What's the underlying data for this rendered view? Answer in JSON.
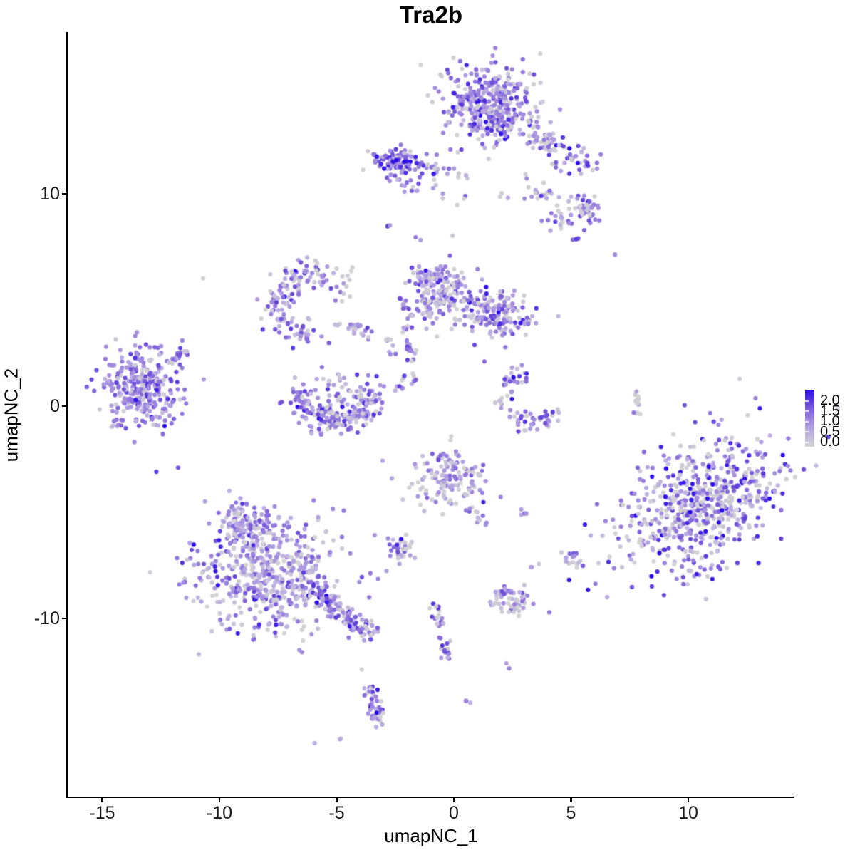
{
  "chart_data": {
    "type": "scatter",
    "title": "Tra2b",
    "xlabel": "umapNC_1",
    "ylabel": "umapNC_2",
    "xlim": [
      -16.5,
      14.5
    ],
    "ylim": [
      -18.4,
      17.6
    ],
    "grid": false,
    "x_ticks": [
      "-15",
      "-10",
      "-5",
      "0",
      "5",
      "10"
    ],
    "x_tick_values": [
      -15,
      -10,
      -5,
      0,
      5,
      10
    ],
    "y_ticks": [
      "10",
      "0",
      "-10"
    ],
    "y_tick_values": [
      10,
      0,
      -10
    ],
    "legend": {
      "position": "right",
      "labels": [
        "2.0",
        "1.5",
        "1.0",
        "0.5",
        "0.0"
      ],
      "label_values": [
        2.0,
        1.5,
        1.0,
        0.5,
        0.0
      ]
    },
    "point_radius": 3.1,
    "color_low": "#D3D3D3",
    "color_high": "#2C0DEB",
    "gradient_stops": [
      [
        0,
        "#D3D3D3"
      ],
      [
        0.25,
        "#BDB0E2"
      ],
      [
        0.5,
        "#9B83DE"
      ],
      [
        0.75,
        "#6A4AD8"
      ],
      [
        1,
        "#2C0DEB"
      ]
    ],
    "clusters": [
      {
        "name": "top-main-core",
        "type": "gauss",
        "cx": 1.55,
        "cy": 14.16,
        "sx": 0.85,
        "sy": 0.85,
        "n": 330,
        "expr": {
          "mean": 1.05,
          "sd": 0.45,
          "gray": 0.1
        }
      },
      {
        "name": "top-main-halo",
        "type": "gauss",
        "cx": 1.55,
        "cy": 14.1,
        "sx": 1.35,
        "sy": 1.25,
        "n": 55,
        "expr": {
          "mean": 0.85,
          "sd": 0.5,
          "gray": 0.3
        }
      },
      {
        "name": "top-tail",
        "type": "line",
        "x1": 3.2,
        "y1": 12.95,
        "x2": 5.9,
        "y2": 11.15,
        "jitter": 0.42,
        "n": 85,
        "expr": {
          "mean": 0.9,
          "sd": 0.5,
          "gray": 0.22
        }
      },
      {
        "name": "top-tail-lower",
        "type": "line",
        "x1": 2.9,
        "y1": 10.5,
        "x2": 4.9,
        "y2": 9.6,
        "jitter": 0.3,
        "n": 18,
        "expr": {
          "mean": 0.8,
          "sd": 0.5,
          "gray": 0.3
        }
      },
      {
        "name": "right-clump-a",
        "type": "gauss",
        "cx": 5.65,
        "cy": 9.33,
        "sx": 0.32,
        "sy": 0.36,
        "n": 42,
        "expr": {
          "mean": 1.0,
          "sd": 0.5,
          "gray": 0.15
        }
      },
      {
        "name": "right-clump-b",
        "type": "gauss",
        "cx": 4.56,
        "cy": 8.82,
        "sx": 0.3,
        "sy": 0.26,
        "n": 20,
        "expr": {
          "mean": 0.9,
          "sd": 0.45,
          "gray": 0.2
        }
      },
      {
        "name": "right-dot-c",
        "type": "gauss",
        "cx": 5.2,
        "cy": 7.85,
        "sx": 0.1,
        "sy": 0.08,
        "n": 3,
        "expr": {
          "mean": 1.1,
          "sd": 0.3,
          "gray": 0
        }
      },
      {
        "name": "right-single",
        "type": "gauss",
        "cx": 6.87,
        "cy": 7.18,
        "sx": 0.05,
        "sy": 0.05,
        "n": 1,
        "expr": {
          "mean": 0.9,
          "sd": 0,
          "gray": 0
        }
      },
      {
        "name": "dense-small",
        "type": "gauss",
        "cx": -2.4,
        "cy": 11.5,
        "sx": 0.55,
        "sy": 0.34,
        "n": 95,
        "expr": {
          "mean": 1.25,
          "sd": 0.5,
          "gray": 0.08
        }
      },
      {
        "name": "dense-small-dark",
        "type": "gauss",
        "cx": -2.55,
        "cy": 11.6,
        "sx": 0.08,
        "sy": 0.08,
        "n": 2,
        "expr": {
          "mean": 1.9,
          "sd": 0.1,
          "gray": 0
        }
      },
      {
        "name": "dense-trail",
        "type": "line",
        "x1": -1.45,
        "y1": 11.35,
        "x2": 0.55,
        "y2": 10.85,
        "jitter": 0.2,
        "n": 20,
        "expr": {
          "mean": 1.0,
          "sd": 0.45,
          "gray": 0.15
        }
      },
      {
        "name": "dense-below",
        "type": "gauss",
        "cx": -1.85,
        "cy": 10.45,
        "sx": 0.5,
        "sy": 0.3,
        "n": 12,
        "expr": {
          "mean": 0.8,
          "sd": 0.4,
          "gray": 0.3
        }
      },
      {
        "name": "mid-scatter",
        "type": "gauss",
        "cx": 0.1,
        "cy": 9.9,
        "sx": 0.5,
        "sy": 0.4,
        "n": 8,
        "expr": {
          "mean": 0.8,
          "sd": 0.45,
          "gray": 0.3
        }
      },
      {
        "name": "pair-a",
        "type": "gauss",
        "cx": 2.28,
        "cy": 9.95,
        "sx": 0.15,
        "sy": 0.1,
        "n": 3,
        "expr": {
          "mean": 0.9,
          "sd": 0.3,
          "gray": 0.2
        }
      },
      {
        "name": "pair-b",
        "type": "gauss",
        "cx": 3.28,
        "cy": 9.85,
        "sx": 0.1,
        "sy": 0.08,
        "n": 2,
        "expr": {
          "mean": 0.8,
          "sd": 0.3,
          "gray": 0
        }
      },
      {
        "name": "dot-283",
        "type": "gauss",
        "cx": -2.83,
        "cy": 8.5,
        "sx": 0.1,
        "sy": 0.07,
        "n": 3,
        "expr": {
          "mean": 1.2,
          "sd": 0.3,
          "gray": 0
        }
      },
      {
        "name": "dot-137",
        "type": "gauss",
        "cx": -1.37,
        "cy": 7.79,
        "sx": 0.05,
        "sy": 0.05,
        "n": 1,
        "expr": {
          "mean": 0.7,
          "sd": 0,
          "gray": 0
        }
      },
      {
        "name": "left-crescent",
        "type": "arc",
        "cx": -6.1,
        "cy": 4.75,
        "r": 1.45,
        "a1": 55,
        "a2": 285,
        "jitter": 0.33,
        "n": 135,
        "expr": {
          "mean": 0.95,
          "sd": 0.45,
          "gray": 0.16
        }
      },
      {
        "name": "crescent-strand",
        "type": "line",
        "x1": -5.0,
        "y1": 3.9,
        "x2": -3.6,
        "y2": 3.4,
        "jitter": 0.22,
        "n": 22,
        "expr": {
          "mean": 0.9,
          "sd": 0.4,
          "gray": 0.2
        }
      },
      {
        "name": "crescent-descender",
        "type": "line",
        "x1": -4.45,
        "y1": 6.6,
        "x2": -4.75,
        "y2": 4.9,
        "jitter": 0.13,
        "n": 11,
        "expr": {
          "mean": 0.8,
          "sd": 0.4,
          "gray": 0.3
        }
      },
      {
        "name": "crescent-topdots",
        "type": "gauss",
        "cx": -6.3,
        "cy": 6.6,
        "sx": 0.35,
        "sy": 0.3,
        "n": 5,
        "expr": {
          "mean": 0.6,
          "sd": 0.4,
          "gray": 0.4
        }
      },
      {
        "name": "center-blob-main",
        "type": "gauss",
        "cx": -0.45,
        "cy": 5.2,
        "sx": 0.72,
        "sy": 0.8,
        "n": 150,
        "expr": {
          "mean": 0.85,
          "sd": 0.5,
          "gray": 0.22
        }
      },
      {
        "name": "center-blob-right",
        "type": "gauss",
        "cx": 1.85,
        "cy": 4.4,
        "sx": 0.75,
        "sy": 0.55,
        "n": 140,
        "expr": {
          "mean": 1.0,
          "sd": 0.5,
          "gray": 0.15
        }
      },
      {
        "name": "center-blob-knob",
        "type": "gauss",
        "cx": -1.1,
        "cy": 6.0,
        "sx": 0.38,
        "sy": 0.3,
        "n": 40,
        "expr": {
          "mean": 0.9,
          "sd": 0.45,
          "gray": 0.15
        }
      },
      {
        "name": "center-blob-tip",
        "type": "gauss",
        "cx": 3.0,
        "cy": 3.9,
        "sx": 0.2,
        "sy": 0.15,
        "n": 7,
        "expr": {
          "mean": 0.9,
          "sd": 0.4,
          "gray": 0.2
        }
      },
      {
        "name": "v-strand",
        "type": "line",
        "x1": -2.15,
        "y1": 4.9,
        "x2": -1.6,
        "y2": 0.9,
        "jitter": 0.17,
        "n": 30,
        "expr": {
          "mean": 0.9,
          "sd": 0.45,
          "gray": 0.25
        }
      },
      {
        "name": "v-strand-dense",
        "type": "gauss",
        "cx": -1.95,
        "cy": 2.6,
        "sx": 0.12,
        "sy": 0.1,
        "n": 6,
        "expr": {
          "mean": 1.3,
          "sd": 0.3,
          "gray": 0
        }
      },
      {
        "name": "v-strand2",
        "type": "line",
        "x1": -2.8,
        "y1": 3.35,
        "x2": -2.55,
        "y2": 2.0,
        "jitter": 0.1,
        "n": 8,
        "expr": {
          "mean": 0.7,
          "sd": 0.4,
          "gray": 0.3
        }
      },
      {
        "name": "v-strand3",
        "type": "gauss",
        "cx": -2.3,
        "cy": 0.9,
        "sx": 0.15,
        "sy": 0.3,
        "n": 8,
        "expr": {
          "mean": 0.9,
          "sd": 0.4,
          "gray": 0.2
        }
      },
      {
        "name": "left-big",
        "type": "gauss",
        "cx": -13.3,
        "cy": 0.9,
        "sx": 0.85,
        "sy": 1.0,
        "n": 300,
        "expr": {
          "mean": 1.0,
          "sd": 0.45,
          "gray": 0.1
        }
      },
      {
        "name": "left-big-tail",
        "type": "line",
        "x1": -12.0,
        "y1": 1.95,
        "x2": -11.2,
        "y2": 2.95,
        "jitter": 0.17,
        "n": 18,
        "expr": {
          "mean": 1.1,
          "sd": 0.4,
          "gray": 0.1
        }
      },
      {
        "name": "center-u-arc",
        "type": "arc",
        "cx": -5.02,
        "cy": 0.74,
        "r": 1.5,
        "a1": 180,
        "a2": 365,
        "jitter": 0.33,
        "n": 205,
        "expr": {
          "mean": 1.05,
          "sd": 0.5,
          "gray": 0.12
        }
      },
      {
        "name": "center-u-inner",
        "type": "gauss",
        "cx": -5.0,
        "cy": 0.9,
        "sx": 0.75,
        "sy": 0.5,
        "n": 28,
        "expr": {
          "mean": 0.7,
          "sd": 0.45,
          "gray": 0.35
        }
      },
      {
        "name": "c-right",
        "type": "arc",
        "cx": 3.28,
        "cy": 0.4,
        "r": 1.2,
        "a1": 95,
        "a2": 330,
        "jitter": 0.24,
        "n": 72,
        "expr": {
          "mean": 0.95,
          "sd": 0.45,
          "gray": 0.2
        }
      },
      {
        "name": "tiny-strand-right",
        "type": "line",
        "x1": 7.78,
        "y1": 0.85,
        "x2": 7.9,
        "y2": -0.7,
        "jitter": 0.09,
        "n": 13,
        "expr": {
          "mean": 0.6,
          "sd": 0.4,
          "gray": 0.4
        }
      },
      {
        "name": "big-right",
        "type": "gauss",
        "cx": 10.58,
        "cy": -4.65,
        "sx": 2.0,
        "sy": 1.3,
        "rot": 40,
        "n": 620,
        "expr": {
          "mean": 0.95,
          "sd": 0.55,
          "gray": 0.22
        }
      },
      {
        "name": "center-bottom",
        "type": "gauss",
        "cx": -0.3,
        "cy": -3.45,
        "sx": 0.8,
        "sy": 0.7,
        "n": 130,
        "expr": {
          "mean": 0.7,
          "sd": 0.45,
          "gray": 0.3
        }
      },
      {
        "name": "center-bottom-tail",
        "type": "line",
        "x1": 0.65,
        "y1": -4.7,
        "x2": 1.3,
        "y2": -5.6,
        "jitter": 0.13,
        "n": 12,
        "expr": {
          "mean": 0.8,
          "sd": 0.4,
          "gray": 0.25
        }
      },
      {
        "name": "center-bottom-single",
        "type": "gauss",
        "cx": -1.25,
        "cy": -4.97,
        "sx": 0.05,
        "sy": 0.05,
        "n": 1,
        "expr": {
          "mean": 0.4,
          "sd": 0,
          "gray": 0
        }
      },
      {
        "name": "pair-292",
        "type": "gauss",
        "cx": 2.92,
        "cy": -5.05,
        "sx": 0.13,
        "sy": 0.1,
        "n": 4,
        "expr": {
          "mean": 1.0,
          "sd": 0.3,
          "gray": 0.1
        }
      },
      {
        "name": "clump-231",
        "type": "gauss",
        "cx": -2.3,
        "cy": -6.7,
        "sx": 0.33,
        "sy": 0.4,
        "n": 40,
        "expr": {
          "mean": 0.9,
          "sd": 0.5,
          "gray": 0.25
        }
      },
      {
        "name": "clump-505",
        "type": "gauss",
        "cx": 5.05,
        "cy": -7.25,
        "sx": 0.2,
        "sy": 0.17,
        "n": 12,
        "expr": {
          "mean": 1.0,
          "sd": 0.5,
          "gray": 0.15
        }
      },
      {
        "name": "pair-340",
        "type": "gauss",
        "cx": 3.4,
        "cy": -7.5,
        "sx": 0.1,
        "sy": 0.08,
        "n": 3,
        "expr": {
          "mean": 0.6,
          "sd": 0.3,
          "gray": 0.3
        }
      },
      {
        "name": "bottomleft-main",
        "type": "gauss",
        "cx": -8.05,
        "cy": -7.75,
        "sx": 1.55,
        "sy": 1.45,
        "n": 520,
        "expr": {
          "mean": 0.8,
          "sd": 0.45,
          "gray": 0.18
        }
      },
      {
        "name": "bottomleft-knob",
        "type": "gauss",
        "cx": -8.75,
        "cy": -5.5,
        "sx": 0.6,
        "sy": 0.5,
        "n": 85,
        "expr": {
          "mean": 0.85,
          "sd": 0.45,
          "gray": 0.2
        }
      },
      {
        "name": "bottomleft-tail",
        "type": "line",
        "x1": -6.3,
        "y1": -8.6,
        "x2": -3.5,
        "y2": -10.8,
        "jitter": 0.3,
        "n": 130,
        "expr": {
          "mean": 1.0,
          "sd": 0.5,
          "gray": 0.15
        }
      },
      {
        "name": "clump-243",
        "type": "gauss",
        "cx": 2.43,
        "cy": -9.25,
        "sx": 0.48,
        "sy": 0.3,
        "n": 55,
        "expr": {
          "mean": 0.75,
          "sd": 0.4,
          "gray": 0.25
        }
      },
      {
        "name": "strand-down",
        "type": "line",
        "x1": -0.85,
        "y1": -9.2,
        "x2": -0.25,
        "y2": -12.0,
        "jitter": 0.13,
        "n": 24,
        "expr": {
          "mean": 0.85,
          "sd": 0.45,
          "gray": 0.2
        }
      },
      {
        "name": "strand-down-clump",
        "type": "gauss",
        "cx": -0.35,
        "cy": -11.5,
        "sx": 0.16,
        "sy": 0.14,
        "n": 9,
        "expr": {
          "mean": 0.9,
          "sd": 0.4,
          "gray": 0.15
        }
      },
      {
        "name": "bottom-clump",
        "type": "line",
        "x1": -3.65,
        "y1": -13.2,
        "x2": -3.2,
        "y2": -15.0,
        "jitter": 0.16,
        "n": 42,
        "expr": {
          "mean": 1.0,
          "sd": 0.5,
          "gray": 0.15
        }
      },
      {
        "name": "bottom-clump-dark",
        "type": "gauss",
        "cx": -3.3,
        "cy": -14.4,
        "sx": 0.05,
        "sy": 0.05,
        "n": 1,
        "expr": {
          "mean": 2.0,
          "sd": 0,
          "gray": 0
        }
      },
      {
        "name": "pair-061",
        "type": "gauss",
        "cx": 0.6,
        "cy": -13.8,
        "sx": 0.1,
        "sy": 0.08,
        "n": 3,
        "expr": {
          "mean": 1.1,
          "sd": 0.3,
          "gray": 0
        }
      },
      {
        "name": "pair-225",
        "type": "gauss",
        "cx": 2.25,
        "cy": -12.3,
        "sx": 0.09,
        "sy": 0.07,
        "n": 2,
        "expr": {
          "mean": 0.9,
          "sd": 0.2,
          "gray": 0
        }
      },
      {
        "name": "lone-gray-1",
        "type": "gauss",
        "cx": -10.64,
        "cy": 6.0,
        "sx": 0.05,
        "sy": 0.05,
        "n": 1,
        "expr": {
          "mean": 0.05,
          "sd": 0,
          "gray": 0
        }
      },
      {
        "name": "lone-gray-2",
        "type": "gauss",
        "cx": -3.89,
        "cy": -12.3,
        "sx": 0.05,
        "sy": 0.05,
        "n": 1,
        "expr": {
          "mean": 0.05,
          "sd": 0,
          "gray": 0
        }
      },
      {
        "name": "dots-477",
        "type": "gauss",
        "cx": -4.77,
        "cy": -15.6,
        "sx": 0.12,
        "sy": 0.08,
        "n": 2,
        "expr": {
          "mean": 0.8,
          "sd": 0.3,
          "gray": 0.2
        }
      },
      {
        "name": "dot-590",
        "type": "gauss",
        "cx": -5.9,
        "cy": -15.85,
        "sx": 0.05,
        "sy": 0.05,
        "n": 1,
        "expr": {
          "mean": 0.5,
          "sd": 0,
          "gray": 0
        }
      }
    ]
  }
}
